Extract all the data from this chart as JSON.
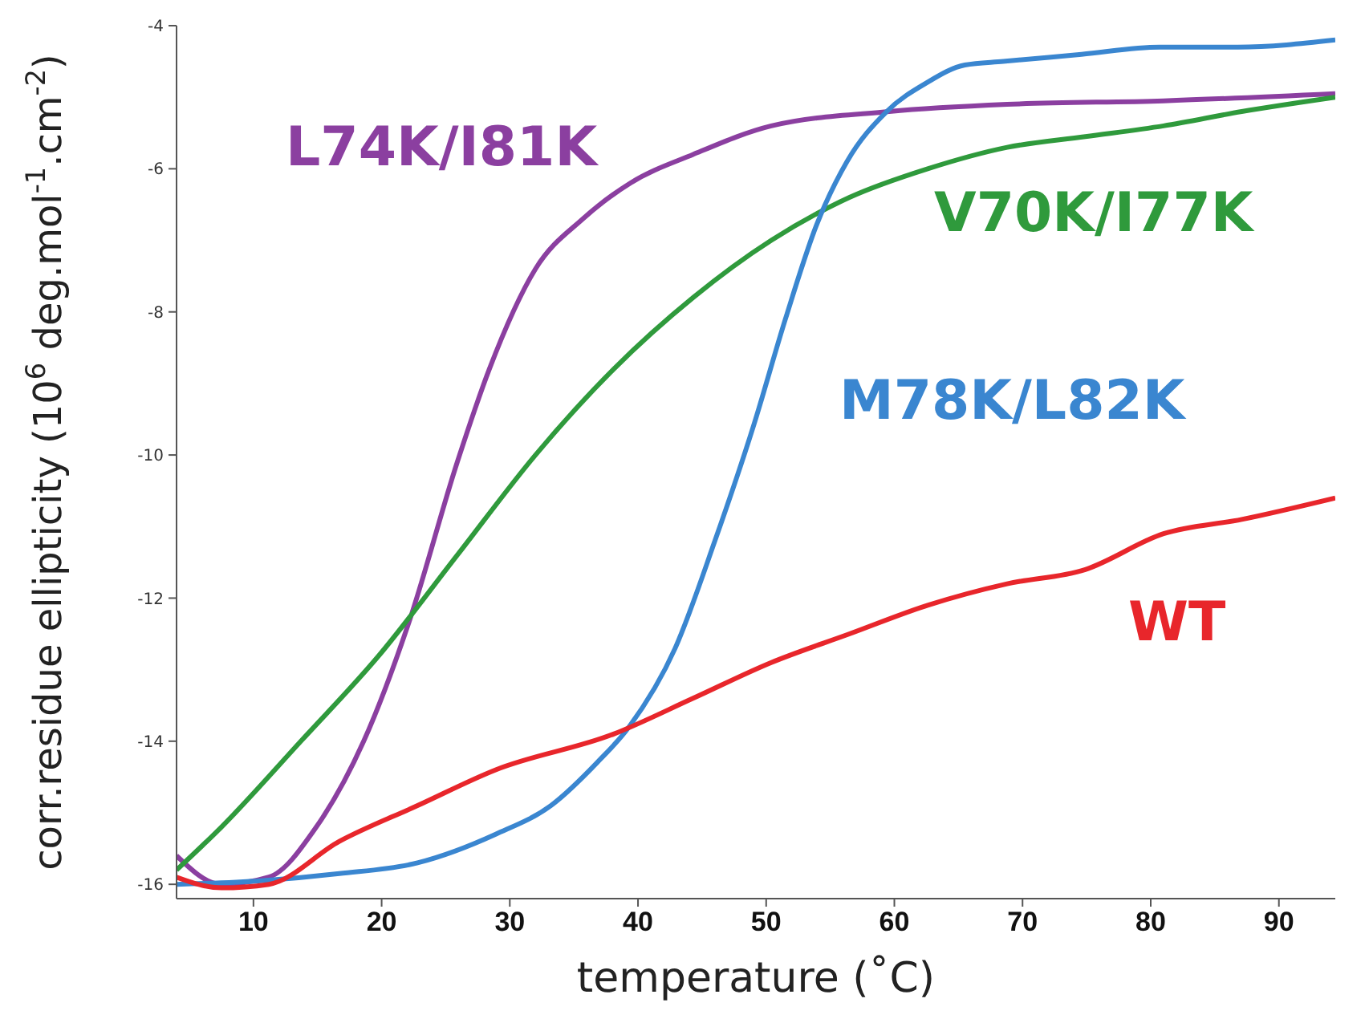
{
  "chart_data": {
    "type": "line",
    "xlabel": "temperature (˚C)",
    "ylabel": "corr.residue ellipticity (10$^{6}$ deg.mol$^{-1}$.cm$^{-2}$)",
    "xlim": [
      4,
      94.4
    ],
    "xticks": [
      10,
      20,
      30,
      40,
      50,
      60,
      70,
      80,
      90
    ],
    "ylim": [
      -16.2,
      -4
    ],
    "yticks": [
      -16,
      -14,
      -12,
      -10,
      -8,
      -6,
      -4
    ],
    "grid": false,
    "legend": false,
    "marker": "none",
    "line_style": "solid",
    "series": [
      {
        "name": "L74K/I81K",
        "color": "#8b3fa0",
        "x": [
          4,
          7.5,
          11.2,
          14.9,
          18.6,
          22.2,
          25.9,
          28.4,
          32,
          35.7,
          39.4,
          44.3,
          50.4,
          59.6,
          68.8,
          81,
          94.4
        ],
        "values": [
          -15.6,
          -16,
          -15.9,
          -15.2,
          -14,
          -12.3,
          -10.1,
          -8.8,
          -7.4,
          -6.7,
          -6.2,
          -5.8,
          -5.4,
          -5.2,
          -5.1,
          -5.05,
          -4.95
        ]
      },
      {
        "name": "V70K/I77K",
        "color": "#2f9a3c",
        "x": [
          4,
          7.5,
          13.7,
          19.8,
          25.9,
          32,
          38.1,
          44.3,
          50.4,
          56.5,
          62.6,
          68.8,
          74.9,
          81,
          87.1,
          94.4
        ],
        "values": [
          -15.8,
          -15.2,
          -14,
          -12.8,
          -11.4,
          -10,
          -8.8,
          -7.8,
          -7,
          -6.4,
          -6,
          -5.7,
          -5.55,
          -5.4,
          -5.2,
          -5
        ]
      },
      {
        "name": "M78K/L82K",
        "color": "#3a86d0",
        "x": [
          4,
          10.6,
          16.7,
          22.8,
          28.9,
          33.2,
          36.8,
          39.3,
          42.9,
          46,
          49,
          51.5,
          53.9,
          56.3,
          59.4,
          62.5,
          65.5,
          68.5,
          74.6,
          80.7,
          86.8,
          94.4
        ],
        "values": [
          -16,
          -15.95,
          -15.85,
          -15.7,
          -15.3,
          -14.9,
          -14.3,
          -13.8,
          -12.7,
          -11.2,
          -9.6,
          -8.1,
          -6.8,
          -5.9,
          -5.2,
          -4.8,
          -4.55,
          -4.5,
          -4.4,
          -4.3,
          -4.3,
          -4.2
        ]
      },
      {
        "name": "WT",
        "color": "#e8262b",
        "x": [
          4,
          7.5,
          11.2,
          16.7,
          22.8,
          28.9,
          38.1,
          44.3,
          50.4,
          56.5,
          62.6,
          68.8,
          74.9,
          81,
          87.1,
          94.4
        ],
        "values": [
          -15.9,
          -16.05,
          -16,
          -15.4,
          -14.9,
          -14.4,
          -13.9,
          -13.4,
          -12.9,
          -12.5,
          -12.1,
          -11.8,
          -11.6,
          -11.1,
          -10.9,
          -10.6
        ]
      }
    ]
  }
}
